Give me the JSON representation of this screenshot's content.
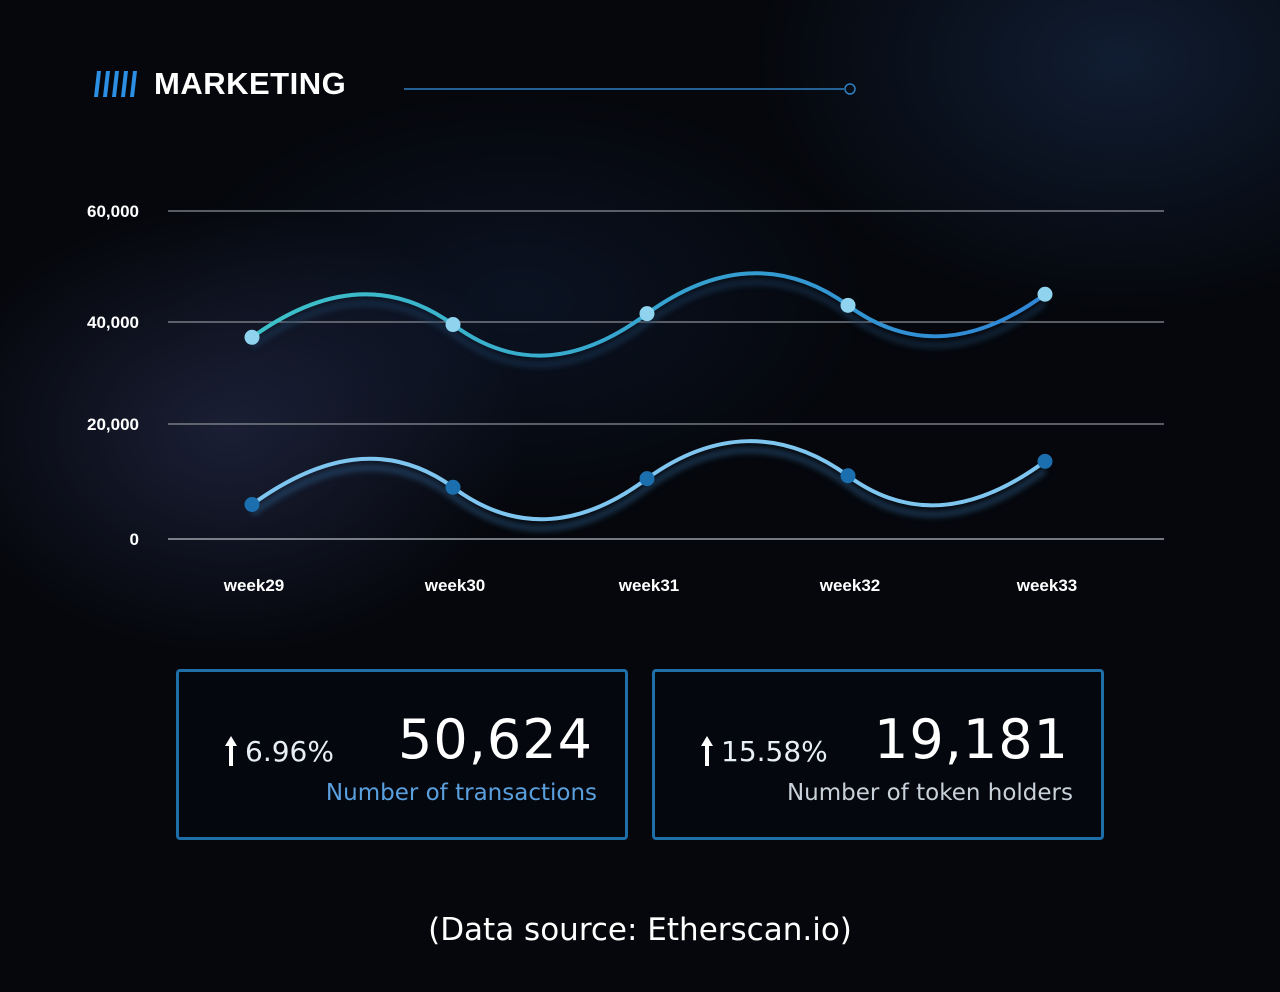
{
  "header": {
    "title": "MARKETING"
  },
  "chart_data": {
    "type": "line",
    "categories": [
      "week29",
      "week30",
      "week31",
      "week32",
      "week33"
    ],
    "series": [
      {
        "values": [
          37000,
          39500,
          41500,
          43000,
          45000
        ],
        "color": "#8fd3ee",
        "line_from": "#3dc2c9",
        "line_to": "#2f86d6"
      },
      {
        "values": [
          6000,
          9000,
          10500,
          11000,
          13500
        ],
        "color": "#1c6fae",
        "line_from": "#7ec6f0",
        "line_to": "#7ec6f0"
      }
    ],
    "y_ticks": [
      "0",
      "20,000",
      "40,000",
      "60,000"
    ],
    "ylim": [
      0,
      60000
    ],
    "grid": true,
    "legend": "none",
    "title": "",
    "xlabel": "",
    "ylabel": ""
  },
  "stats": [
    {
      "change": "6.96%",
      "value": "50,624",
      "label": "Number of transactions"
    },
    {
      "change": "15.58%",
      "value": "19,181",
      "label": "Number of token holders"
    }
  ],
  "footer": {
    "source": "(Data source: Etherscan.io)"
  },
  "colors": {
    "accent": "#1e6fa8",
    "background": "#05070c"
  },
  "icons": [
    "bars-icon",
    "arrow-up-icon"
  ]
}
